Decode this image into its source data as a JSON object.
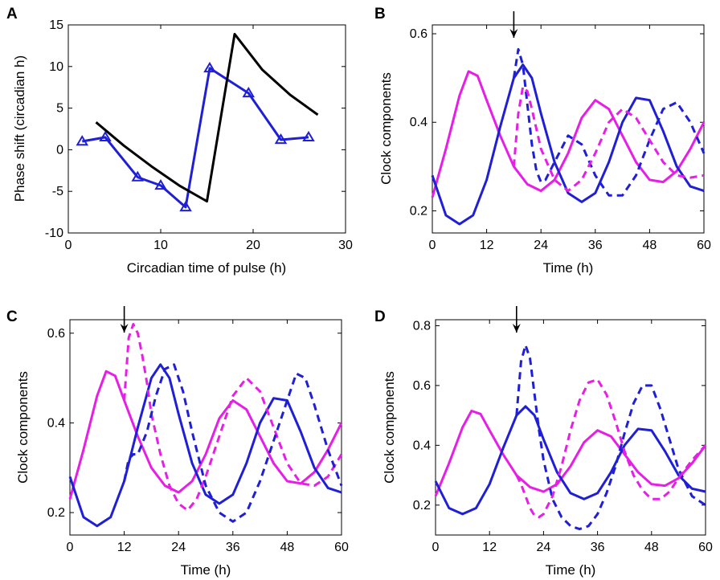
{
  "colors": {
    "blue": "#1f1fd6",
    "magenta": "#e61ee6",
    "black": "#000000"
  },
  "panels": [
    {
      "letter": "A",
      "xlabel": "Circadian time of pulse (h)",
      "ylabel": "Phase shift (circadian h)",
      "xticks": [
        "0",
        "10",
        "20",
        "30"
      ],
      "yticks": [
        "-10",
        "-5",
        "0",
        "5",
        "10",
        "15"
      ]
    },
    {
      "letter": "B",
      "xlabel": "Time (h)",
      "ylabel": "Clock components",
      "xticks": [
        "0",
        "12",
        "24",
        "36",
        "48",
        "60"
      ],
      "yticks": [
        "0.2",
        "0.4",
        "0.6"
      ]
    },
    {
      "letter": "C",
      "xlabel": "Time (h)",
      "ylabel": "Clock components",
      "xticks": [
        "0",
        "12",
        "24",
        "36",
        "48",
        "60"
      ],
      "yticks": [
        "0.2",
        "0.4",
        "0.6"
      ]
    },
    {
      "letter": "D",
      "xlabel": "Time (h)",
      "ylabel": "Clock components",
      "xticks": [
        "0",
        "12",
        "24",
        "36",
        "48",
        "60"
      ],
      "yticks": [
        "0.2",
        "0.4",
        "0.6",
        "0.8"
      ]
    }
  ],
  "chart_data": [
    {
      "panel": "A",
      "type": "line",
      "xlabel": "Circadian time of pulse (h)",
      "ylabel": "Phase shift (circadian h)",
      "xlim": [
        0,
        30
      ],
      "ylim": [
        -10,
        15
      ],
      "grid": false,
      "series": [
        {
          "color": "blue",
          "style": "solid",
          "marker": "triangle",
          "x": [
            1.5,
            4,
            7.5,
            10,
            12.7,
            15.3,
            19.5,
            23,
            26
          ],
          "y": [
            1,
            1.5,
            -3.3,
            -4.3,
            -6.9,
            9.8,
            6.8,
            1.2,
            1.5
          ]
        },
        {
          "color": "black",
          "style": "solid",
          "marker": "none",
          "x": [
            3,
            6,
            9,
            12,
            15,
            18,
            21,
            24,
            27
          ],
          "y": [
            3.3,
            0.5,
            -2,
            -4.3,
            -6.2,
            13.9,
            9.6,
            6.6,
            4.2
          ]
        }
      ]
    },
    {
      "panel": "B",
      "type": "line",
      "xlabel": "Time (h)",
      "ylabel": "Clock components",
      "xlim": [
        0,
        60
      ],
      "ylim": [
        0.15,
        0.62
      ],
      "grid": false,
      "annotations": [
        {
          "type": "arrow",
          "x": 18
        }
      ],
      "series": [
        {
          "color": "magenta",
          "style": "solid",
          "x": [
            0,
            3,
            6,
            8,
            10,
            12,
            15,
            18,
            21,
            24,
            27,
            30,
            33,
            36,
            39,
            42,
            45,
            48,
            51,
            54,
            57,
            60
          ],
          "y": [
            0.23,
            0.34,
            0.46,
            0.515,
            0.505,
            0.45,
            0.37,
            0.3,
            0.26,
            0.245,
            0.27,
            0.33,
            0.41,
            0.45,
            0.43,
            0.37,
            0.31,
            0.27,
            0.265,
            0.29,
            0.34,
            0.4
          ]
        },
        {
          "color": "blue",
          "style": "solid",
          "x": [
            0,
            3,
            6,
            9,
            12,
            15,
            18,
            20,
            22,
            24,
            27,
            30,
            33,
            36,
            39,
            42,
            45,
            48,
            51,
            54,
            57,
            60
          ],
          "y": [
            0.28,
            0.19,
            0.17,
            0.19,
            0.27,
            0.39,
            0.5,
            0.53,
            0.5,
            0.42,
            0.31,
            0.24,
            0.22,
            0.24,
            0.31,
            0.4,
            0.455,
            0.45,
            0.38,
            0.3,
            0.255,
            0.245
          ]
        },
        {
          "color": "blue",
          "style": "dashed",
          "x": [
            18,
            19,
            20,
            21,
            22,
            23,
            24,
            25,
            27,
            30,
            33,
            36,
            39,
            42,
            45,
            48,
            51,
            54,
            57,
            60
          ],
          "y": [
            0.5,
            0.565,
            0.53,
            0.44,
            0.35,
            0.29,
            0.265,
            0.27,
            0.31,
            0.37,
            0.35,
            0.28,
            0.235,
            0.235,
            0.28,
            0.36,
            0.43,
            0.445,
            0.4,
            0.33
          ]
        },
        {
          "color": "magenta",
          "style": "dashed",
          "x": [
            18,
            19,
            20,
            21,
            22,
            24,
            27,
            30,
            33,
            36,
            39,
            42,
            45,
            48,
            51,
            54,
            57,
            60
          ],
          "y": [
            0.3,
            0.42,
            0.48,
            0.47,
            0.43,
            0.34,
            0.27,
            0.245,
            0.27,
            0.33,
            0.4,
            0.43,
            0.41,
            0.36,
            0.31,
            0.28,
            0.275,
            0.28
          ]
        }
      ]
    },
    {
      "panel": "C",
      "type": "line",
      "xlabel": "Time (h)",
      "ylabel": "Clock components",
      "xlim": [
        0,
        60
      ],
      "ylim": [
        0.15,
        0.63
      ],
      "grid": false,
      "annotations": [
        {
          "type": "arrow",
          "x": 12
        }
      ],
      "series": [
        {
          "color": "magenta",
          "style": "solid",
          "x": [
            0,
            3,
            6,
            8,
            10,
            12,
            15,
            18,
            21,
            24,
            27,
            30,
            33,
            36,
            39,
            42,
            45,
            48,
            51,
            54,
            57,
            60
          ],
          "y": [
            0.23,
            0.34,
            0.46,
            0.515,
            0.505,
            0.45,
            0.37,
            0.3,
            0.26,
            0.245,
            0.27,
            0.33,
            0.41,
            0.45,
            0.43,
            0.37,
            0.31,
            0.27,
            0.265,
            0.29,
            0.34,
            0.4
          ]
        },
        {
          "color": "blue",
          "style": "solid",
          "x": [
            0,
            3,
            6,
            9,
            12,
            15,
            18,
            20,
            22,
            24,
            27,
            30,
            33,
            36,
            39,
            42,
            45,
            48,
            51,
            54,
            57,
            60
          ],
          "y": [
            0.28,
            0.19,
            0.17,
            0.19,
            0.27,
            0.39,
            0.5,
            0.53,
            0.5,
            0.42,
            0.31,
            0.24,
            0.22,
            0.24,
            0.31,
            0.4,
            0.455,
            0.45,
            0.38,
            0.3,
            0.255,
            0.245
          ]
        },
        {
          "color": "magenta",
          "style": "dashed",
          "x": [
            12,
            13,
            14,
            15,
            16,
            17,
            18,
            20,
            22,
            24,
            26,
            28,
            30,
            33,
            36,
            39,
            42,
            45,
            48,
            51,
            54,
            57,
            60
          ],
          "y": [
            0.45,
            0.59,
            0.62,
            0.6,
            0.55,
            0.49,
            0.42,
            0.33,
            0.26,
            0.22,
            0.205,
            0.23,
            0.28,
            0.37,
            0.46,
            0.5,
            0.47,
            0.39,
            0.31,
            0.265,
            0.26,
            0.28,
            0.33
          ]
        },
        {
          "color": "blue",
          "style": "dashed",
          "x": [
            12,
            13,
            14,
            15,
            17,
            19,
            21,
            23,
            25,
            27,
            30,
            33,
            36,
            39,
            42,
            45,
            48,
            50,
            52,
            54,
            57,
            60
          ],
          "y": [
            0.27,
            0.32,
            0.33,
            0.33,
            0.38,
            0.46,
            0.52,
            0.53,
            0.47,
            0.38,
            0.26,
            0.2,
            0.18,
            0.2,
            0.27,
            0.36,
            0.45,
            0.51,
            0.5,
            0.44,
            0.34,
            0.26
          ]
        }
      ]
    },
    {
      "panel": "D",
      "type": "line",
      "xlabel": "Time (h)",
      "ylabel": "Clock components",
      "xlim": [
        0,
        60
      ],
      "ylim": [
        0.1,
        0.82
      ],
      "grid": false,
      "annotations": [
        {
          "type": "arrow",
          "x": 18
        }
      ],
      "series": [
        {
          "color": "magenta",
          "style": "solid",
          "x": [
            0,
            3,
            6,
            8,
            10,
            12,
            15,
            18,
            21,
            24,
            27,
            30,
            33,
            36,
            39,
            42,
            45,
            48,
            51,
            54,
            57,
            60
          ],
          "y": [
            0.23,
            0.34,
            0.46,
            0.515,
            0.505,
            0.45,
            0.37,
            0.3,
            0.26,
            0.245,
            0.27,
            0.33,
            0.41,
            0.45,
            0.43,
            0.37,
            0.31,
            0.27,
            0.265,
            0.29,
            0.34,
            0.4
          ]
        },
        {
          "color": "blue",
          "style": "solid",
          "x": [
            0,
            3,
            6,
            9,
            12,
            15,
            18,
            20,
            22,
            24,
            27,
            30,
            33,
            36,
            39,
            42,
            45,
            48,
            51,
            54,
            57,
            60
          ],
          "y": [
            0.28,
            0.19,
            0.17,
            0.19,
            0.27,
            0.39,
            0.5,
            0.53,
            0.5,
            0.42,
            0.31,
            0.24,
            0.22,
            0.24,
            0.31,
            0.4,
            0.455,
            0.45,
            0.38,
            0.3,
            0.255,
            0.245
          ]
        },
        {
          "color": "blue",
          "style": "dashed",
          "x": [
            18,
            19,
            20,
            21,
            22,
            23,
            24,
            26,
            28,
            30,
            32,
            34,
            36,
            38,
            40,
            42,
            44,
            46,
            48,
            50,
            52,
            54,
            57,
            60
          ],
          "y": [
            0.5,
            0.68,
            0.735,
            0.69,
            0.57,
            0.45,
            0.35,
            0.22,
            0.16,
            0.13,
            0.12,
            0.13,
            0.17,
            0.24,
            0.33,
            0.44,
            0.54,
            0.6,
            0.6,
            0.52,
            0.42,
            0.32,
            0.23,
            0.2
          ]
        },
        {
          "color": "magenta",
          "style": "dashed",
          "x": [
            18,
            19,
            20,
            21,
            22,
            23,
            24,
            26,
            28,
            30,
            32,
            34,
            36,
            38,
            40,
            42,
            44,
            46,
            48,
            50,
            52,
            54,
            57,
            60
          ],
          "y": [
            0.3,
            0.27,
            0.23,
            0.19,
            0.165,
            0.16,
            0.17,
            0.23,
            0.33,
            0.45,
            0.55,
            0.61,
            0.62,
            0.57,
            0.48,
            0.38,
            0.3,
            0.25,
            0.22,
            0.22,
            0.245,
            0.29,
            0.35,
            0.4
          ]
        }
      ]
    }
  ]
}
